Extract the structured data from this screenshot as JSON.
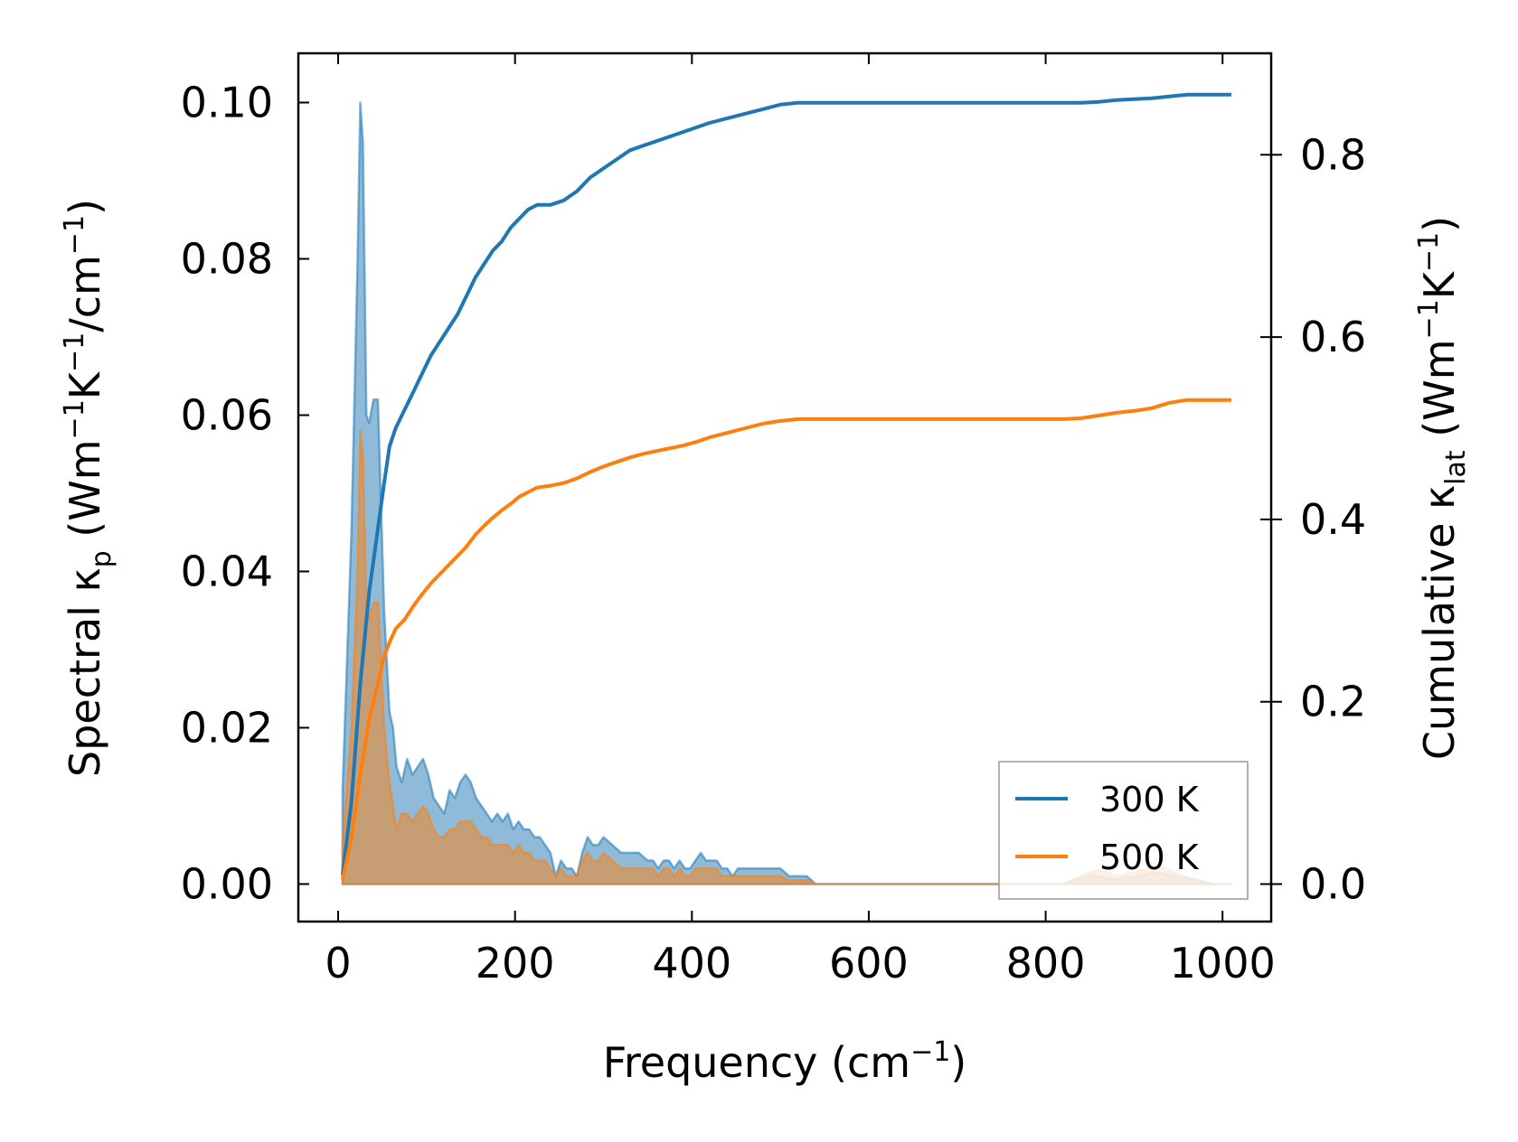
{
  "chart_data": {
    "type": "line",
    "title": "",
    "xlabel": {
      "prefix": "Frequency (cm",
      "sup": "−1",
      "suffix": ")"
    },
    "ylabel_left": {
      "a": "Spectral κ",
      "a_sub": "p",
      "b": " (Wm",
      "b_sup": "−1",
      "c": "K",
      "c_sup": "−1",
      "d": "/cm",
      "d_sup": "−1",
      "e": ")"
    },
    "ylabel_right": {
      "a": "Cumulative κ",
      "a_sub": "lat",
      "b": " (Wm",
      "b_sup": "−1",
      "c": "K",
      "c_sup": "−1",
      "e": ")"
    },
    "xlim": [
      -45,
      1055
    ],
    "ylim_left": [
      -0.0048,
      0.1063
    ],
    "ylim_right": [
      -0.0411,
      0.9113
    ],
    "x_ticks": [
      0,
      200,
      400,
      600,
      800,
      1000
    ],
    "x_tick_labels": [
      "0",
      "200",
      "400",
      "600",
      "800",
      "1000"
    ],
    "y_left_ticks": [
      0.0,
      0.02,
      0.04,
      0.06,
      0.08,
      0.1
    ],
    "y_left_tick_labels": [
      "0.00",
      "0.02",
      "0.04",
      "0.06",
      "0.08",
      "0.10"
    ],
    "y_right_ticks": [
      0.0,
      0.2,
      0.4,
      0.6,
      0.8
    ],
    "y_right_tick_labels": [
      "0.0",
      "0.2",
      "0.4",
      "0.6",
      "0.8"
    ],
    "legend_position": "bottom-right",
    "series": [
      {
        "name": "300 K",
        "color": "#1f77b4",
        "spectral_axis": "left",
        "spectral": {
          "x": [
            5,
            15,
            22,
            25,
            28,
            32,
            35,
            40,
            45,
            52,
            58,
            62,
            66,
            72,
            78,
            84,
            90,
            96,
            102,
            108,
            114,
            120,
            126,
            132,
            138,
            144,
            150,
            156,
            162,
            168,
            174,
            180,
            186,
            192,
            198,
            204,
            210,
            216,
            222,
            228,
            234,
            240,
            246,
            252,
            258,
            264,
            270,
            276,
            282,
            288,
            294,
            300,
            310,
            320,
            330,
            340,
            350,
            356,
            362,
            368,
            374,
            380,
            386,
            392,
            398,
            404,
            410,
            416,
            422,
            428,
            434,
            440,
            446,
            452,
            458,
            464,
            470,
            480,
            490,
            500,
            510,
            520,
            530,
            540,
            560,
            600,
            650,
            700,
            750,
            800,
            820,
            830,
            840,
            850,
            860,
            870,
            880,
            890,
            900,
            910,
            920,
            930,
            940,
            950,
            960,
            970,
            980,
            990,
            1000,
            1010
          ],
          "y": [
            0.012,
            0.045,
            0.08,
            0.1,
            0.095,
            0.06,
            0.059,
            0.062,
            0.062,
            0.035,
            0.022,
            0.02,
            0.015,
            0.013,
            0.016,
            0.014,
            0.015,
            0.016,
            0.014,
            0.011,
            0.01,
            0.009,
            0.012,
            0.011,
            0.013,
            0.014,
            0.013,
            0.011,
            0.01,
            0.009,
            0.008,
            0.009,
            0.008,
            0.009,
            0.007,
            0.008,
            0.007,
            0.007,
            0.006,
            0.006,
            0.005,
            0.004,
            0.001,
            0.003,
            0.002,
            0.002,
            0.001,
            0.004,
            0.006,
            0.005,
            0.005,
            0.006,
            0.005,
            0.004,
            0.004,
            0.004,
            0.003,
            0.003,
            0.002,
            0.003,
            0.003,
            0.002,
            0.003,
            0.002,
            0.002,
            0.003,
            0.004,
            0.003,
            0.003,
            0.003,
            0.002,
            0.002,
            0.001,
            0.002,
            0.002,
            0.002,
            0.002,
            0.002,
            0.002,
            0.002,
            0.001,
            0.001,
            0.001,
            0.0,
            0.0,
            0.0,
            0.0,
            0.0,
            0.0,
            0.0,
            0.0,
            0.0005,
            0.0008,
            0.0012,
            0.001,
            0.0008,
            0.0006,
            0.0008,
            0.001,
            0.0012,
            0.0015,
            0.0014,
            0.0012,
            0.001,
            0.0008,
            0.0006,
            0.0003,
            0.0,
            0.0,
            0.0
          ]
        },
        "cumulative_axis": "right",
        "cumulative": {
          "x": [
            5,
            15,
            25,
            35,
            45,
            52,
            58,
            65,
            75,
            85,
            95,
            105,
            115,
            125,
            135,
            145,
            155,
            165,
            175,
            185,
            195,
            205,
            215,
            225,
            240,
            255,
            270,
            285,
            300,
            315,
            330,
            345,
            360,
            375,
            390,
            405,
            420,
            440,
            460,
            480,
            500,
            520,
            540,
            560,
            600,
            650,
            700,
            750,
            800,
            820,
            840,
            860,
            880,
            900,
            920,
            940,
            960,
            980,
            1000,
            1010
          ],
          "y": [
            0.01,
            0.09,
            0.22,
            0.32,
            0.39,
            0.44,
            0.48,
            0.5,
            0.52,
            0.54,
            0.56,
            0.58,
            0.595,
            0.61,
            0.625,
            0.645,
            0.665,
            0.68,
            0.695,
            0.705,
            0.72,
            0.73,
            0.74,
            0.745,
            0.745,
            0.75,
            0.76,
            0.775,
            0.785,
            0.795,
            0.805,
            0.81,
            0.815,
            0.82,
            0.825,
            0.83,
            0.835,
            0.84,
            0.845,
            0.85,
            0.855,
            0.857,
            0.857,
            0.857,
            0.857,
            0.857,
            0.857,
            0.857,
            0.857,
            0.857,
            0.857,
            0.858,
            0.86,
            0.861,
            0.862,
            0.864,
            0.866,
            0.866,
            0.866,
            0.866
          ]
        }
      },
      {
        "name": "500 K",
        "color": "#ff7f0e",
        "spectral_axis": "left",
        "spectral": {
          "x": [
            5,
            15,
            22,
            25,
            28,
            32,
            35,
            40,
            45,
            52,
            58,
            62,
            66,
            72,
            78,
            84,
            90,
            96,
            102,
            108,
            114,
            120,
            126,
            132,
            138,
            144,
            150,
            156,
            162,
            168,
            174,
            180,
            186,
            192,
            198,
            204,
            210,
            216,
            222,
            228,
            234,
            240,
            246,
            252,
            258,
            264,
            270,
            276,
            282,
            288,
            294,
            300,
            310,
            320,
            330,
            340,
            350,
            356,
            362,
            368,
            374,
            380,
            386,
            392,
            398,
            404,
            410,
            416,
            422,
            428,
            434,
            440,
            446,
            452,
            458,
            464,
            470,
            480,
            490,
            500,
            510,
            520,
            530,
            540,
            560,
            600,
            650,
            700,
            750,
            800,
            820,
            830,
            840,
            850,
            860,
            870,
            880,
            890,
            900,
            910,
            920,
            930,
            940,
            950,
            960,
            970,
            980,
            990,
            1000,
            1010
          ],
          "y": [
            0.005,
            0.02,
            0.04,
            0.058,
            0.055,
            0.035,
            0.034,
            0.036,
            0.036,
            0.02,
            0.013,
            0.01,
            0.007,
            0.009,
            0.009,
            0.008,
            0.009,
            0.01,
            0.009,
            0.007,
            0.006,
            0.006,
            0.007,
            0.007,
            0.008,
            0.008,
            0.008,
            0.007,
            0.006,
            0.006,
            0.005,
            0.005,
            0.005,
            0.005,
            0.004,
            0.005,
            0.004,
            0.004,
            0.003,
            0.003,
            0.003,
            0.002,
            0.001,
            0.002,
            0.001,
            0.001,
            0.001,
            0.003,
            0.004,
            0.003,
            0.003,
            0.004,
            0.003,
            0.002,
            0.002,
            0.002,
            0.002,
            0.002,
            0.001,
            0.002,
            0.002,
            0.001,
            0.002,
            0.001,
            0.001,
            0.002,
            0.002,
            0.002,
            0.002,
            0.002,
            0.001,
            0.001,
            0.001,
            0.001,
            0.001,
            0.001,
            0.001,
            0.001,
            0.001,
            0.001,
            0.0005,
            0.0005,
            0.0005,
            0.0,
            0.0,
            0.0,
            0.0,
            0.0,
            0.0,
            0.0,
            0.0,
            0.0005,
            0.001,
            0.0015,
            0.0018,
            0.0015,
            0.001,
            0.0012,
            0.0015,
            0.0018,
            0.002,
            0.0022,
            0.0018,
            0.0012,
            0.0008,
            0.0005,
            0.0002,
            0.0,
            0.0,
            0.0
          ]
        },
        "cumulative_axis": "right",
        "cumulative": {
          "x": [
            5,
            15,
            25,
            35,
            45,
            52,
            58,
            65,
            75,
            85,
            95,
            105,
            115,
            125,
            135,
            145,
            155,
            165,
            175,
            185,
            195,
            205,
            215,
            225,
            240,
            255,
            270,
            285,
            300,
            315,
            330,
            345,
            360,
            375,
            390,
            405,
            420,
            440,
            460,
            480,
            500,
            520,
            540,
            560,
            600,
            650,
            700,
            750,
            800,
            820,
            840,
            860,
            880,
            900,
            920,
            940,
            960,
            980,
            1000,
            1010
          ],
          "y": [
            0.005,
            0.05,
            0.12,
            0.18,
            0.22,
            0.25,
            0.265,
            0.28,
            0.29,
            0.305,
            0.318,
            0.33,
            0.34,
            0.35,
            0.36,
            0.37,
            0.383,
            0.393,
            0.402,
            0.41,
            0.417,
            0.425,
            0.43,
            0.435,
            0.437,
            0.44,
            0.445,
            0.452,
            0.458,
            0.463,
            0.468,
            0.472,
            0.475,
            0.478,
            0.481,
            0.485,
            0.49,
            0.495,
            0.5,
            0.505,
            0.508,
            0.51,
            0.51,
            0.51,
            0.51,
            0.51,
            0.51,
            0.51,
            0.51,
            0.51,
            0.511,
            0.514,
            0.517,
            0.519,
            0.522,
            0.528,
            0.531,
            0.531,
            0.531,
            0.531
          ]
        }
      }
    ]
  }
}
